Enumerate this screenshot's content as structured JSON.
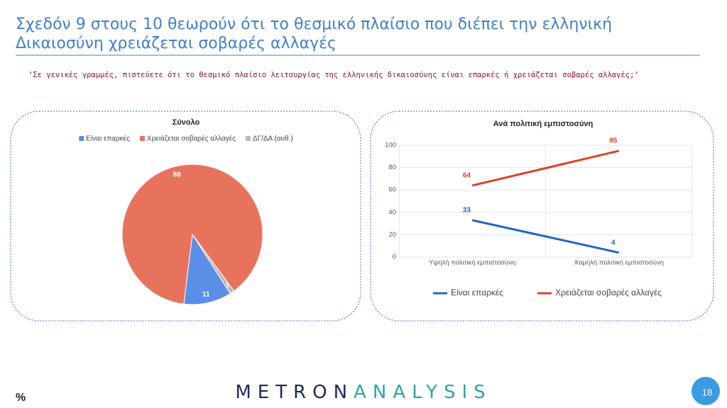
{
  "title": [
    "Σχεδόν 9 στους 10 θεωρούν ότι το θεσμικό πλαίσιο που διέπει την ελληνική",
    "Δικαιοσύνη χρειάζεται σοβαρές αλλαγές"
  ],
  "question": "‘Σε γενικές γραμμές, πιστεύετε ότι το θεσμικό πλαίσιο λειτουργίας της ελληνικής δικαιοσύνης είναι επαρκές ή χρειάζεται σοβαρές αλλαγές;’",
  "chart_data": [
    {
      "type": "pie",
      "title": "Σύνολο",
      "categories": [
        "Είναι επαρκές",
        "Χρειάζεται σοβαρές αλλαγές",
        "ΔΓ/ΔΑ (αυθ.)"
      ],
      "values": [
        11,
        88,
        1
      ],
      "colors": [
        "#5b8ee6",
        "#e8735d",
        "#b9b9b9"
      ],
      "legend": "top"
    },
    {
      "type": "line",
      "title": "Ανά πολιτική εμπιστοσύνη",
      "categories": [
        "Υψηλή πολιτική εμπιστοσύνη",
        "Χαμηλή πολιτική εμπιστοσύνη"
      ],
      "series": [
        {
          "name": "Είναι επαρκές",
          "color": "#1f66c9",
          "values": [
            33,
            4
          ]
        },
        {
          "name": "Χρειάζεται σοβαρές αλλαγές",
          "color": "#d8432a",
          "values": [
            64,
            95
          ]
        }
      ],
      "ylim": [
        0,
        100
      ],
      "yticks": [
        0,
        20,
        40,
        60,
        80,
        100
      ],
      "grid": true,
      "legend": "bottom"
    }
  ],
  "unit": "%",
  "logo": [
    "METRON",
    "ANALYSIS"
  ],
  "page_number": "18"
}
